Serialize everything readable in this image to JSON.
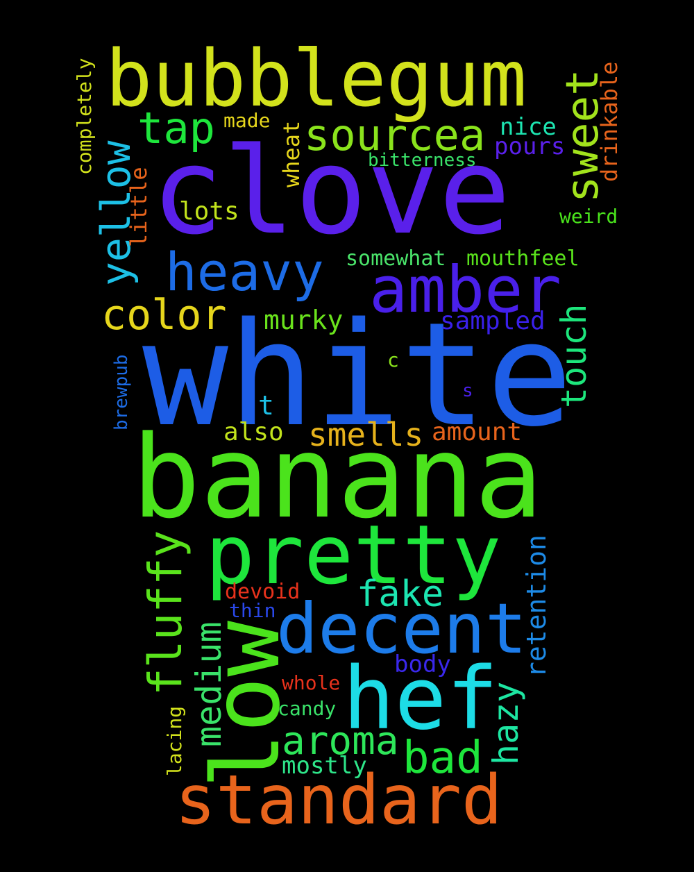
{
  "words": [
    {
      "text": "white",
      "color": "#1d5de6"
    },
    {
      "text": "banana",
      "color": "#4be31c"
    },
    {
      "text": "clove",
      "color": "#5a20ea"
    },
    {
      "text": "bubblegum",
      "color": "#d2e21c"
    },
    {
      "text": "pretty",
      "color": "#1ee63c"
    },
    {
      "text": "standard",
      "color": "#e8641c"
    },
    {
      "text": "decent",
      "color": "#1d7cea"
    },
    {
      "text": "low",
      "color": "#4be31c"
    },
    {
      "text": "hef",
      "color": "#1ddce6"
    },
    {
      "text": "amber",
      "color": "#4a20ea"
    },
    {
      "text": "heavy",
      "color": "#1d6ce6"
    },
    {
      "text": "sourcea",
      "color": "#8ae31c"
    },
    {
      "text": "color",
      "color": "#e6d61c"
    },
    {
      "text": "tap",
      "color": "#1ee63c"
    },
    {
      "text": "yellow",
      "color": "#1dc0e6"
    },
    {
      "text": "sweet",
      "color": "#a2e31c"
    },
    {
      "text": "aroma",
      "color": "#2ee65a"
    },
    {
      "text": "bad",
      "color": "#1ee63c"
    },
    {
      "text": "fluffy",
      "color": "#5ae31c"
    },
    {
      "text": "medium",
      "color": "#3ae36a"
    },
    {
      "text": "smells",
      "color": "#e6b21c"
    },
    {
      "text": "touch",
      "color": "#1de67c"
    },
    {
      "text": "fake",
      "color": "#1de6b2"
    },
    {
      "text": "hazy",
      "color": "#1de6a2"
    },
    {
      "text": "retention",
      "color": "#1d8ae6"
    },
    {
      "text": "murky",
      "color": "#6ae31c"
    },
    {
      "text": "sampled",
      "color": "#3a20ea"
    },
    {
      "text": "amount",
      "color": "#e8641c"
    },
    {
      "text": "also",
      "color": "#c2e31c"
    },
    {
      "text": "lots",
      "color": "#c2e31c"
    },
    {
      "text": "nice",
      "color": "#1de6b2"
    },
    {
      "text": "pours",
      "color": "#5a20ea"
    },
    {
      "text": "mostly",
      "color": "#2ee68a"
    },
    {
      "text": "body",
      "color": "#3a28ea"
    },
    {
      "text": "little",
      "color": "#e8641c"
    },
    {
      "text": "drinkable",
      "color": "#e8641c"
    },
    {
      "text": "wheat",
      "color": "#e6d61c"
    },
    {
      "text": "somewhat",
      "color": "#4ae36a"
    },
    {
      "text": "mouthfeel",
      "color": "#5ae31c"
    },
    {
      "text": "completely",
      "color": "#d2e21c"
    },
    {
      "text": "devoid",
      "color": "#e8321c"
    },
    {
      "text": "whole",
      "color": "#e8321c"
    },
    {
      "text": "candy",
      "color": "#3ae36a"
    },
    {
      "text": "thin",
      "color": "#2a48ea"
    },
    {
      "text": "made",
      "color": "#e6d61c"
    },
    {
      "text": "bitterness",
      "color": "#3ae36a"
    },
    {
      "text": "weird",
      "color": "#4ae31c"
    },
    {
      "text": "brewpub",
      "color": "#1d6ce6"
    },
    {
      "text": "lacing",
      "color": "#d2e21c"
    },
    {
      "text": "t",
      "color": "#1dc0e6"
    },
    {
      "text": "c",
      "color": "#8ae31c"
    },
    {
      "text": "s",
      "color": "#4a20ea"
    }
  ]
}
